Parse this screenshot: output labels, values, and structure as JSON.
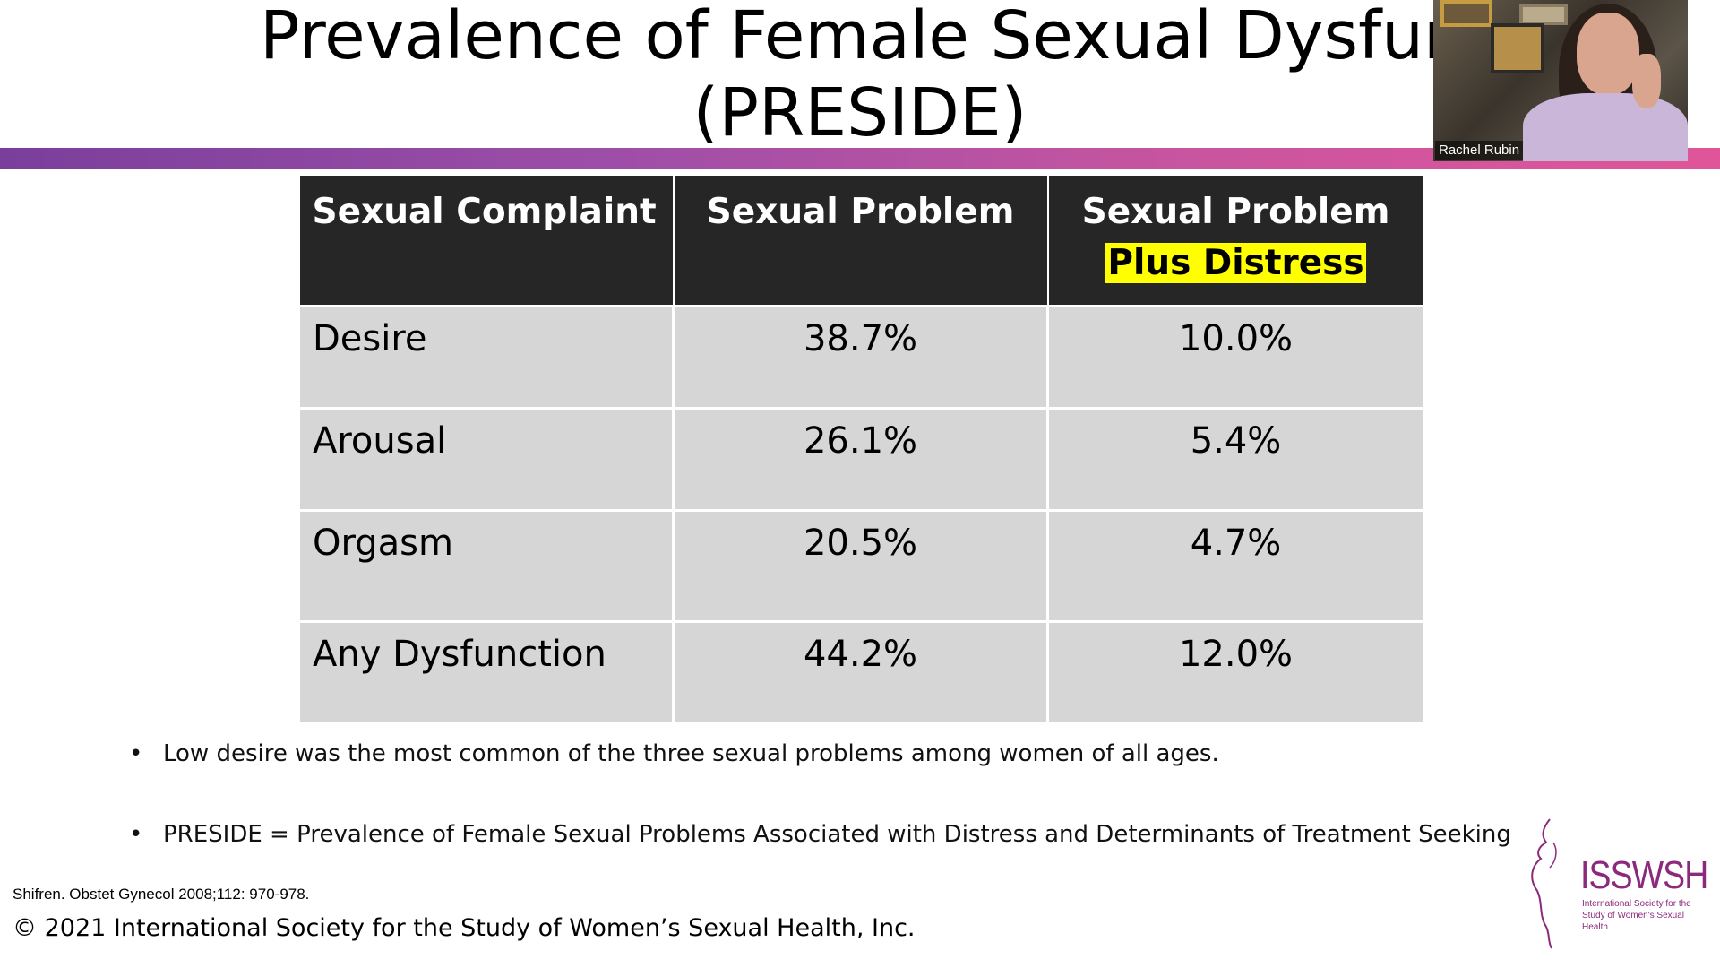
{
  "slide": {
    "title_line1": "Prevalence of Female Sexual Dysfunction",
    "title_line2": "(PRESIDE)"
  },
  "webcam": {
    "participant_name": "Rachel Rubin"
  },
  "table": {
    "headers": [
      "Sexual Complaint",
      "Sexual Problem",
      "Sexual Problem",
      "Plus Distress"
    ],
    "rows": [
      [
        "Desire",
        "38.7%",
        "10.0%"
      ],
      [
        "Arousal",
        "26.1%",
        "5.4%"
      ],
      [
        "Orgasm",
        "20.5%",
        "4.7%"
      ],
      [
        "Any Dysfunction",
        "44.2%",
        "12.0%"
      ]
    ]
  },
  "bullets": [
    "Low desire was the most common of the three sexual problems among women of all ages.",
    "PRESIDE = Prevalence of Female Sexual Problems Associated with Distress and Determinants of Treatment Seeking"
  ],
  "citation": "Shifren. Obstet Gynecol 2008;112: 970-978.",
  "copyright": "© 2021 International Society for the Study of Women’s Sexual Health, Inc.",
  "logo": {
    "acronym": "ISSWSH",
    "subtitle": "International Society for the Study of Women's Sexual Health"
  },
  "colors": {
    "header_bg": "#262626",
    "cell_bg": "#d6d6d6",
    "highlight": "#ffff00",
    "accent_purple": "#7a3f9b",
    "accent_pink": "#e0559a",
    "logo_color": "#8b2a7c"
  }
}
